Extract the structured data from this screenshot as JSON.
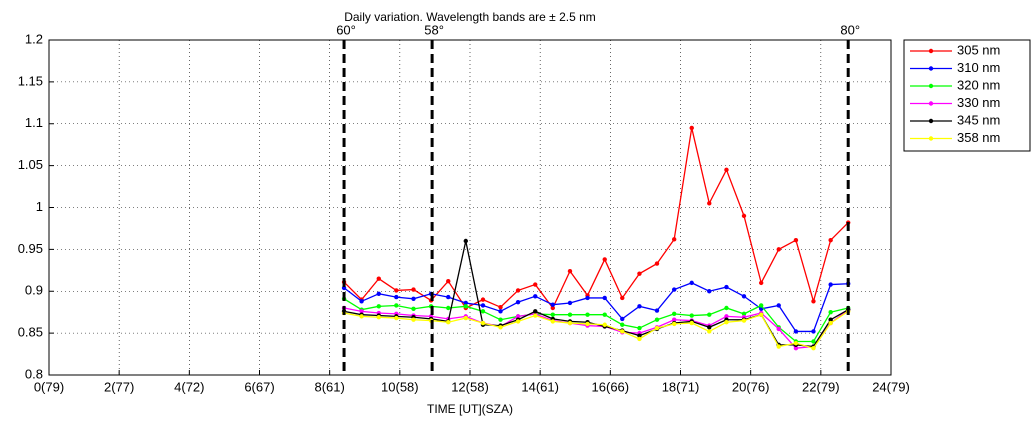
{
  "chart_data": {
    "type": "line",
    "title": "Daily variation. Wavelength bands are ± 2.5 nm",
    "xlabel": "TIME [UT](SZA)",
    "x": [
      8.41,
      8.91,
      9.4,
      9.9,
      10.39,
      10.89,
      11.38,
      11.88,
      12.37,
      12.87,
      13.37,
      13.86,
      14.36,
      14.85,
      15.35,
      15.84,
      16.34,
      16.83,
      17.33,
      17.82,
      18.32,
      18.82,
      19.31,
      19.81,
      20.3,
      20.8,
      21.29,
      21.79,
      22.28,
      22.78
    ],
    "series": [
      {
        "name": "305 nm",
        "color": "#ff0000",
        "values": [
          0.911,
          0.89,
          0.915,
          0.901,
          0.902,
          0.889,
          0.912,
          0.88,
          0.89,
          0.881,
          0.901,
          0.908,
          0.88,
          0.924,
          0.895,
          0.938,
          0.892,
          0.921,
          0.933,
          0.962,
          1.095,
          1.005,
          1.045,
          0.99,
          0.91,
          0.95,
          0.961,
          0.888,
          0.961,
          0.982
        ]
      },
      {
        "name": "310 nm",
        "color": "#0000ff",
        "values": [
          0.904,
          0.888,
          0.897,
          0.893,
          0.891,
          0.897,
          0.893,
          0.886,
          0.883,
          0.876,
          0.887,
          0.894,
          0.884,
          0.886,
          0.892,
          0.892,
          0.867,
          0.882,
          0.877,
          0.902,
          0.91,
          0.9,
          0.905,
          0.894,
          0.879,
          0.883,
          0.852,
          0.852,
          0.908,
          0.909
        ]
      },
      {
        "name": "320 nm",
        "color": "#00ff00",
        "values": [
          0.891,
          0.878,
          0.882,
          0.883,
          0.879,
          0.882,
          0.88,
          0.882,
          0.876,
          0.866,
          0.87,
          0.873,
          0.872,
          0.872,
          0.872,
          0.872,
          0.86,
          0.856,
          0.866,
          0.873,
          0.871,
          0.872,
          0.88,
          0.873,
          0.883,
          0.857,
          0.84,
          0.84,
          0.875,
          0.88
        ]
      },
      {
        "name": "330 nm",
        "color": "#ff00ff",
        "values": [
          0.88,
          0.876,
          0.874,
          0.873,
          0.871,
          0.87,
          0.867,
          0.87,
          0.862,
          0.858,
          0.87,
          0.873,
          0.865,
          0.862,
          0.859,
          0.858,
          0.851,
          0.85,
          0.857,
          0.866,
          0.865,
          0.859,
          0.87,
          0.869,
          0.874,
          0.855,
          0.832,
          0.834,
          0.862,
          0.878
        ]
      },
      {
        "name": "345 nm",
        "color": "#000000",
        "values": [
          0.876,
          0.872,
          0.871,
          0.87,
          0.869,
          0.867,
          0.864,
          0.96,
          0.86,
          0.859,
          0.866,
          0.876,
          0.867,
          0.864,
          0.863,
          0.858,
          0.853,
          0.847,
          0.855,
          0.862,
          0.864,
          0.857,
          0.866,
          0.866,
          0.872,
          0.836,
          0.836,
          0.834,
          0.866,
          0.878
        ]
      },
      {
        "name": "358 nm",
        "color": "#ffff00",
        "values": [
          0.874,
          0.87,
          0.869,
          0.868,
          0.866,
          0.865,
          0.863,
          0.868,
          0.862,
          0.857,
          0.864,
          0.871,
          0.864,
          0.862,
          0.861,
          0.86,
          0.852,
          0.843,
          0.856,
          0.861,
          0.862,
          0.852,
          0.863,
          0.865,
          0.872,
          0.834,
          0.838,
          0.832,
          0.862,
          0.876
        ]
      }
    ],
    "xlim": [
      0,
      24
    ],
    "xticks": [
      {
        "value": 0,
        "label": "0(79)"
      },
      {
        "value": 2,
        "label": "2(77)"
      },
      {
        "value": 4,
        "label": "4(72)"
      },
      {
        "value": 6,
        "label": "6(67)"
      },
      {
        "value": 8,
        "label": "8(61)"
      },
      {
        "value": 10,
        "label": "10(58)"
      },
      {
        "value": 12,
        "label": "12(58)"
      },
      {
        "value": 14,
        "label": "14(61)"
      },
      {
        "value": 16,
        "label": "16(66)"
      },
      {
        "value": 18,
        "label": "18(71)"
      },
      {
        "value": 20,
        "label": "20(76)"
      },
      {
        "value": 22,
        "label": "22(79)"
      },
      {
        "value": 24,
        "label": "24(79)"
      }
    ],
    "ylim": [
      0.8,
      1.2
    ],
    "yticks": [
      0.8,
      0.85,
      0.9,
      0.95,
      1,
      1.05,
      1.1,
      1.15,
      1.2
    ],
    "grid": true,
    "vlines": [
      {
        "x": 8.41,
        "label": "60°"
      },
      {
        "x": 10.92,
        "label": "58°"
      },
      {
        "x": 22.78,
        "label": "80°"
      }
    ]
  }
}
